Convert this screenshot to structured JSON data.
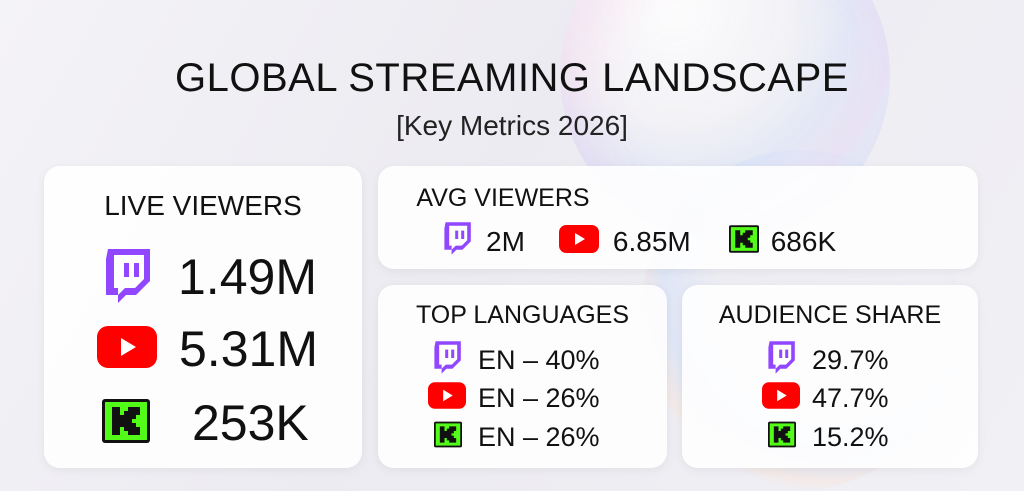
{
  "header": {
    "title": "GLOBAL STREAMING LANDSCAPE",
    "subtitle": "[Key Metrics 2026]"
  },
  "colors": {
    "twitch": "#9146ff",
    "youtube": "#ff0000",
    "kick": "#53fc18"
  },
  "live_viewers": {
    "title": "LIVE VIEWERS",
    "items": [
      {
        "platform": "twitch-icon",
        "value": "1.49M"
      },
      {
        "platform": "youtube-icon",
        "value": "5.31M"
      },
      {
        "platform": "kick-icon",
        "value": "253K"
      }
    ]
  },
  "avg_viewers": {
    "title": "AVG VIEWERS",
    "items": [
      {
        "platform": "twitch-icon",
        "value": "2M"
      },
      {
        "platform": "youtube-icon",
        "value": "6.85M"
      },
      {
        "platform": "kick-icon",
        "value": "686K"
      }
    ]
  },
  "top_languages": {
    "title": "TOP LANGUAGES",
    "items": [
      {
        "platform": "twitch-icon",
        "value": "EN – 40%"
      },
      {
        "platform": "youtube-icon",
        "value": "EN – 26%"
      },
      {
        "platform": "kick-icon",
        "value": "EN – 26%"
      }
    ]
  },
  "audience_share": {
    "title": "AUDIENCE SHARE",
    "items": [
      {
        "platform": "twitch-icon",
        "value": "29.7%"
      },
      {
        "platform": "youtube-icon",
        "value": "47.7%"
      },
      {
        "platform": "kick-icon",
        "value": "15.2%"
      }
    ]
  }
}
